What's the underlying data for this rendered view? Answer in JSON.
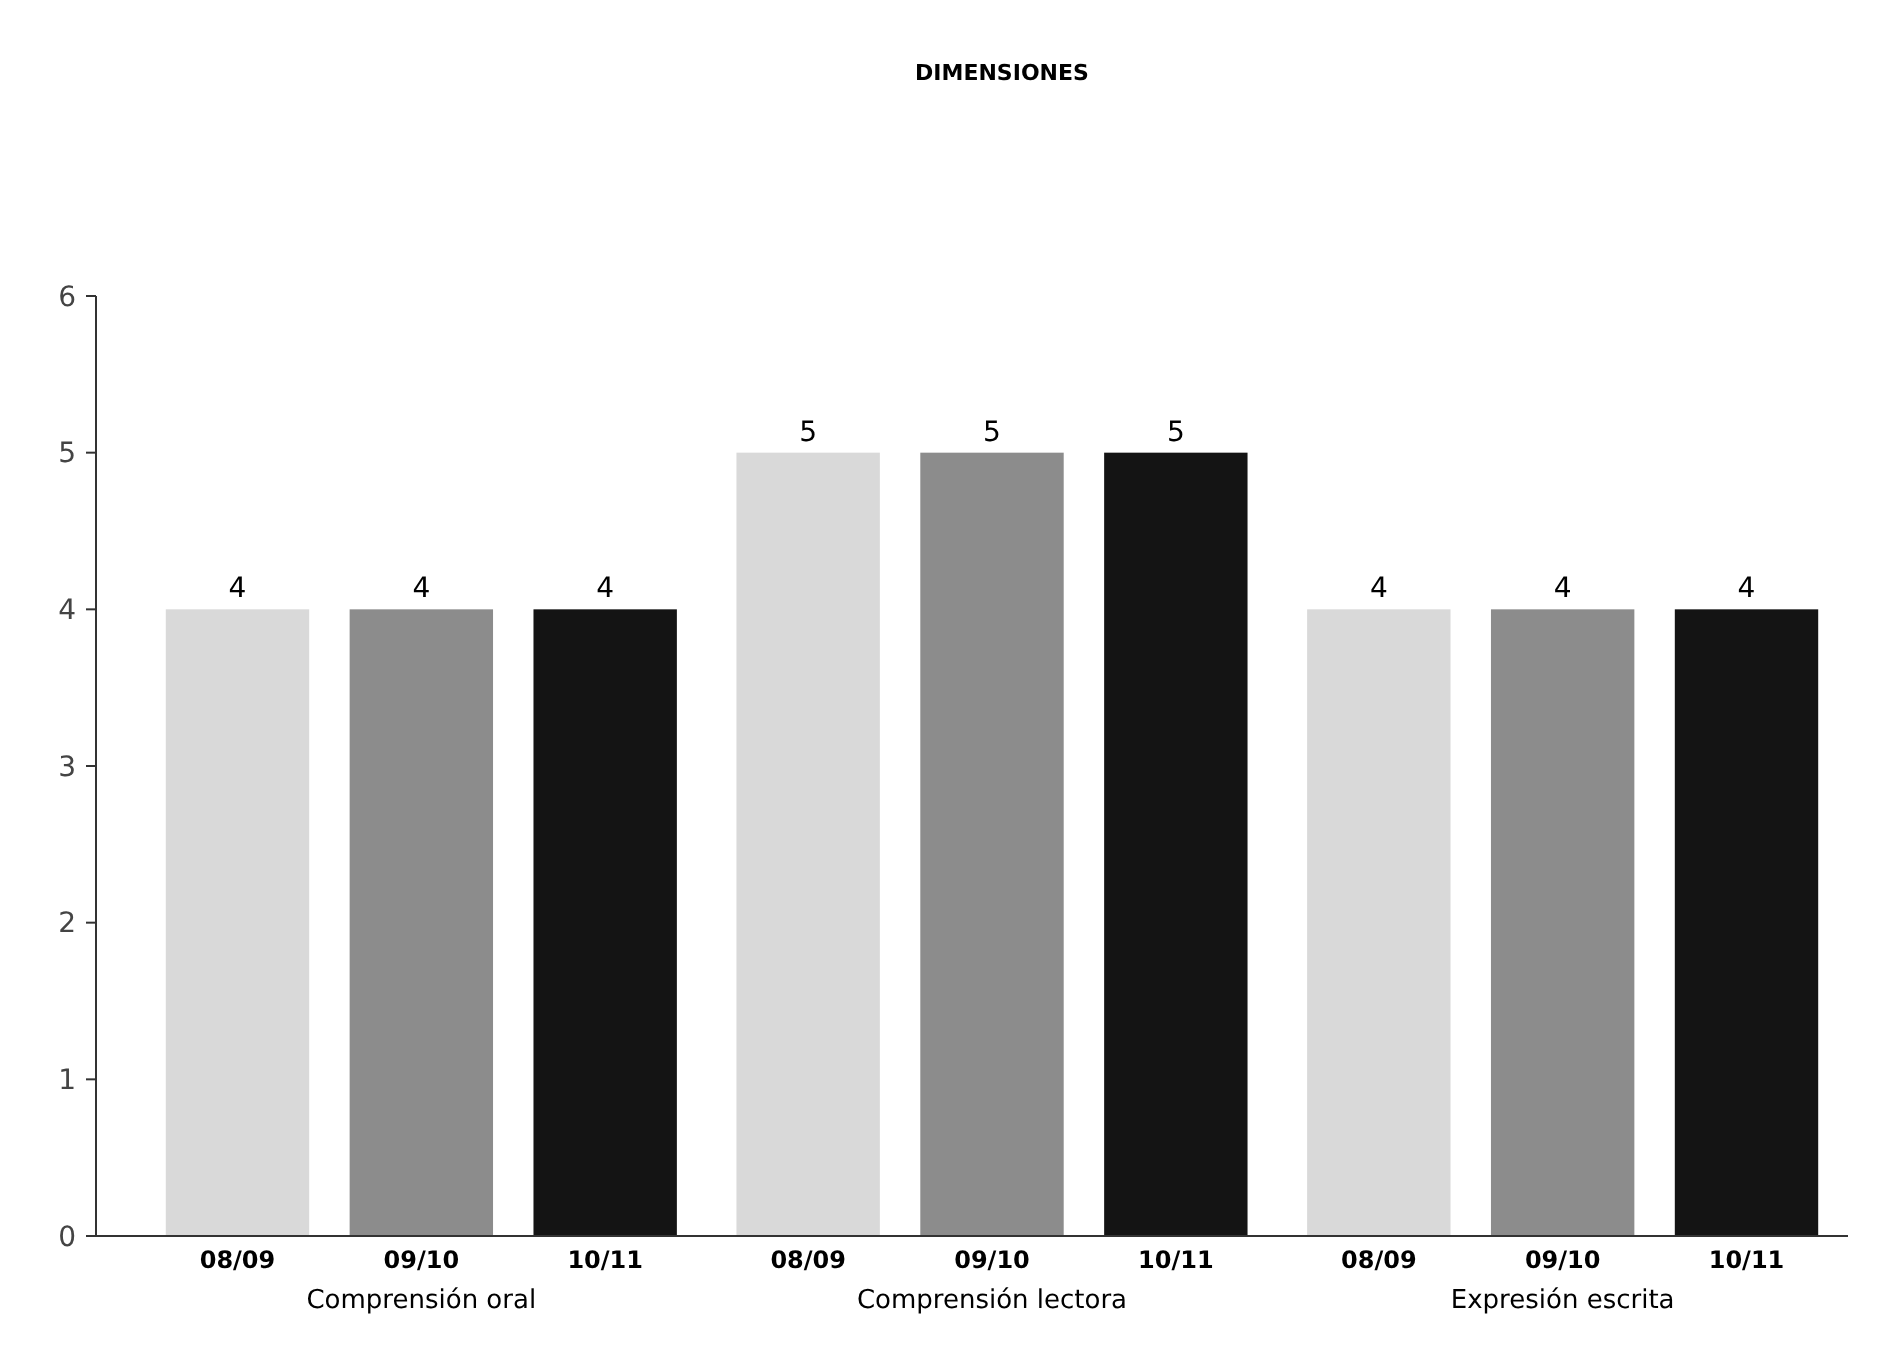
{
  "chart_data": {
    "type": "bar",
    "title": "DIMENSIONES",
    "categories": [
      "Comprensión oral",
      "Comprensión lectora",
      "Expresión escrita"
    ],
    "series": [
      {
        "name": "08/09",
        "color": "#d9d9d9",
        "values": [
          4,
          5,
          4
        ]
      },
      {
        "name": "09/10",
        "color": "#8c8c8c",
        "values": [
          4,
          5,
          4
        ]
      },
      {
        "name": "10/11",
        "color": "#141414",
        "values": [
          4,
          5,
          4
        ]
      }
    ],
    "ylim": [
      0,
      6
    ],
    "yticks": [
      0,
      1,
      2,
      3,
      4,
      5,
      6
    ],
    "data_labels": true,
    "grid": false
  }
}
